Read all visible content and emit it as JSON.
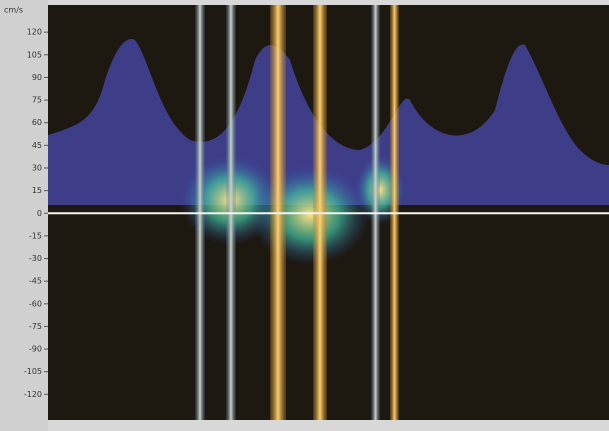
{
  "chart_data": {
    "type": "spectrogram",
    "y_label": "cm/s",
    "ylim": [
      -137,
      138
    ],
    "yticks": [
      120,
      105,
      90,
      75,
      60,
      45,
      30,
      15,
      0,
      -15,
      -30,
      -45,
      -60,
      -75,
      -90,
      -105,
      -120
    ],
    "baseline": 0
  }
}
